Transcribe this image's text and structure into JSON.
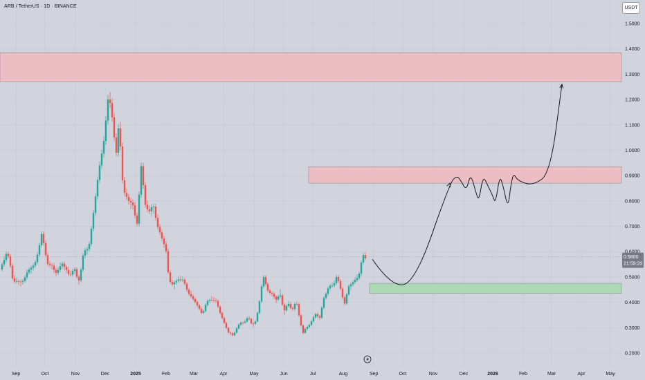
{
  "title": {
    "symbol": "ARB",
    "separator": " / ",
    "quote": "TetherUS",
    "interval": "1D",
    "exchange": "BINANCE"
  },
  "currency_button": "USDT",
  "chart_data": {
    "type": "candlestick",
    "symbol": "ARB / TetherUS",
    "interval": "1D",
    "exchange": "BINANCE",
    "ylim": [
      0.18,
      1.58
    ],
    "y_ticks": [
      {
        "value": 0.2,
        "label": "0.2000"
      },
      {
        "value": 0.3,
        "label": "0.3000"
      },
      {
        "value": 0.4,
        "label": "0.4000"
      },
      {
        "value": 0.5,
        "label": "0.5000"
      },
      {
        "value": 0.6,
        "label": "0.6000"
      },
      {
        "value": 0.7,
        "label": "0.7000"
      },
      {
        "value": 0.8,
        "label": "0.8000"
      },
      {
        "value": 0.9,
        "label": "0.9000"
      },
      {
        "value": 1.0,
        "label": "1.0000"
      },
      {
        "value": 1.1,
        "label": "1.1000"
      },
      {
        "value": 1.2,
        "label": "1.2000"
      },
      {
        "value": 1.3,
        "label": "1.3000"
      },
      {
        "value": 1.4,
        "label": "1.4000"
      },
      {
        "value": 1.5,
        "label": "1.5000"
      }
    ],
    "x_ticks": [
      "Sep",
      "Oct",
      "Nov",
      "Dec",
      "2025",
      "Feb",
      "Mar",
      "Apr",
      "May",
      "Jun",
      "Jul",
      "Aug",
      "Sep",
      "Oct",
      "Nov",
      "Dec",
      "2026",
      "Feb",
      "Mar",
      "Apr",
      "May"
    ],
    "current_price": {
      "value": 0.58,
      "label": "0.5800",
      "countdown": "21:59:20"
    },
    "price_path": [
      [
        0,
        0.53
      ],
      [
        10,
        0.6
      ],
      [
        18,
        0.5
      ],
      [
        28,
        0.47
      ],
      [
        40,
        0.52
      ],
      [
        50,
        0.55
      ],
      [
        60,
        0.66
      ],
      [
        70,
        0.55
      ],
      [
        80,
        0.52
      ],
      [
        90,
        0.55
      ],
      [
        100,
        0.51
      ],
      [
        107,
        0.53
      ],
      [
        113,
        0.48
      ],
      [
        120,
        0.58
      ],
      [
        128,
        0.62
      ],
      [
        135,
        0.75
      ],
      [
        142,
        0.9
      ],
      [
        150,
        1.05
      ],
      [
        157,
        1.2
      ],
      [
        162,
        1.15
      ],
      [
        168,
        0.98
      ],
      [
        172,
        1.1
      ],
      [
        178,
        0.85
      ],
      [
        185,
        0.8
      ],
      [
        192,
        0.78
      ],
      [
        198,
        0.72
      ],
      [
        204,
        0.92
      ],
      [
        210,
        0.8
      ],
      [
        216,
        0.75
      ],
      [
        222,
        0.78
      ],
      [
        228,
        0.7
      ],
      [
        234,
        0.65
      ],
      [
        240,
        0.6
      ],
      [
        244,
        0.5
      ],
      [
        250,
        0.46
      ],
      [
        258,
        0.5
      ],
      [
        265,
        0.48
      ],
      [
        272,
        0.44
      ],
      [
        280,
        0.41
      ],
      [
        286,
        0.38
      ],
      [
        292,
        0.36
      ],
      [
        298,
        0.39
      ],
      [
        305,
        0.42
      ],
      [
        312,
        0.4
      ],
      [
        318,
        0.36
      ],
      [
        324,
        0.32
      ],
      [
        330,
        0.28
      ],
      [
        336,
        0.27
      ],
      [
        342,
        0.3
      ],
      [
        350,
        0.32
      ],
      [
        358,
        0.34
      ],
      [
        364,
        0.31
      ],
      [
        370,
        0.33
      ],
      [
        376,
        0.42
      ],
      [
        380,
        0.5
      ],
      [
        386,
        0.46
      ],
      [
        392,
        0.43
      ],
      [
        398,
        0.41
      ],
      [
        404,
        0.44
      ],
      [
        410,
        0.36
      ],
      [
        416,
        0.4
      ],
      [
        422,
        0.37
      ],
      [
        428,
        0.4
      ],
      [
        432,
        0.35
      ],
      [
        438,
        0.28
      ],
      [
        444,
        0.3
      ],
      [
        450,
        0.33
      ],
      [
        456,
        0.35
      ],
      [
        462,
        0.34
      ],
      [
        468,
        0.42
      ],
      [
        474,
        0.45
      ],
      [
        480,
        0.47
      ],
      [
        486,
        0.5
      ],
      [
        492,
        0.45
      ],
      [
        498,
        0.4
      ],
      [
        504,
        0.46
      ],
      [
        510,
        0.48
      ],
      [
        516,
        0.5
      ],
      [
        520,
        0.52
      ],
      [
        524,
        0.58
      ],
      [
        528,
        0.58
      ]
    ],
    "zones": [
      {
        "name": "upper-resistance",
        "y_from": 1.27,
        "y_to": 1.385,
        "color": "#f2b8c0"
      },
      {
        "name": "mid-resistance",
        "y_from": 0.87,
        "y_to": 0.935,
        "color": "#f2b8c0"
      },
      {
        "name": "support",
        "y_from": 0.435,
        "y_to": 0.475,
        "color": "#a6d8ab"
      }
    ],
    "projection_path": [
      [
        538,
        0.57
      ],
      [
        566,
        0.46
      ],
      [
        600,
        0.48
      ],
      [
        650,
        0.87
      ],
      [
        660,
        0.9
      ],
      [
        666,
        0.88
      ],
      [
        674,
        0.84
      ],
      [
        680,
        0.91
      ],
      [
        688,
        0.83
      ],
      [
        692,
        0.8
      ],
      [
        698,
        0.9
      ],
      [
        705,
        0.86
      ],
      [
        712,
        0.82
      ],
      [
        716,
        0.79
      ],
      [
        722,
        0.9
      ],
      [
        727,
        0.86
      ],
      [
        734,
        0.77
      ],
      [
        738,
        0.86
      ],
      [
        742,
        0.91
      ],
      [
        748,
        0.88
      ],
      [
        770,
        0.86
      ],
      [
        795,
        0.91
      ],
      [
        812,
        1.26
      ]
    ],
    "colors": {
      "background": "#d1d4dc",
      "grid": "#c4c7cf",
      "candle_up": "#26a69a",
      "candle_down": "#ef5350",
      "zone_red": "#f2b8c0",
      "zone_green": "#a6d8ab",
      "drawing": "#131722",
      "price_tag": "#787b86"
    },
    "grid": true
  }
}
